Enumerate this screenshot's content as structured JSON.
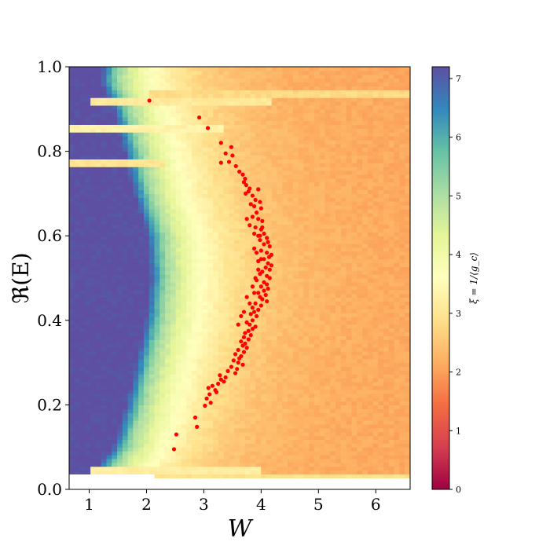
{
  "chart_data": {
    "type": "heatmap",
    "title": "",
    "xlabel": "W",
    "ylabel": "ℜ(E)",
    "xlim": [
      0.65,
      6.6
    ],
    "ylim": [
      0.0,
      1.0
    ],
    "x_ticks": [
      1,
      2,
      3,
      4,
      5,
      6
    ],
    "x_tick_labels": [
      "1",
      "2",
      "3",
      "4",
      "5",
      "6"
    ],
    "y_ticks": [
      0.0,
      0.2,
      0.4,
      0.6,
      0.8,
      1.0
    ],
    "y_tick_labels": [
      "0.0",
      "0.2",
      "0.4",
      "0.6",
      "0.8",
      "1.0"
    ],
    "colormap": "Spectral",
    "colorbar": {
      "label": "ξ = 1/⟨g_c⟩",
      "min": 0,
      "max": 7.2,
      "ticks": [
        0,
        1,
        2,
        3,
        4,
        5,
        6,
        7
      ],
      "tick_labels": [
        "0",
        "1",
        "2",
        "3",
        "4",
        "5",
        "6",
        "7"
      ],
      "colors": [
        "#9e0142",
        "#d53e4f",
        "#f46d43",
        "#fdae61",
        "#fee08b",
        "#ffffbf",
        "#e6f598",
        "#abdda4",
        "#66c2a5",
        "#3288bd",
        "#5e4fa2"
      ]
    },
    "heatmap_model": {
      "saturation_value": 7.2,
      "far_value": 2.1,
      "boundary_w_by_energy": [
        [
          0.04,
          1.2
        ],
        [
          0.1,
          1.55
        ],
        [
          0.2,
          1.78
        ],
        [
          0.3,
          1.95
        ],
        [
          0.4,
          2.12
        ],
        [
          0.5,
          2.2
        ],
        [
          0.6,
          2.15
        ],
        [
          0.7,
          1.92
        ],
        [
          0.8,
          1.75
        ],
        [
          0.9,
          1.55
        ],
        [
          0.96,
          1.35
        ],
        [
          1.0,
          1.35
        ]
      ],
      "data_floor_by_w": [
        [
          0.65,
          0.04
        ],
        [
          1.5,
          0.035
        ],
        [
          2.5,
          0.03
        ],
        [
          4.0,
          0.028
        ],
        [
          6.6,
          0.027
        ]
      ],
      "bright_bands": [
        {
          "e": 0.777,
          "w_start": 0.65,
          "w_end": 2.3,
          "value": 3.0
        },
        {
          "e": 0.85,
          "w_start": 0.65,
          "w_end": 3.3,
          "value": 3.3
        },
        {
          "e": 0.915,
          "w_start": 1.0,
          "w_end": 4.2,
          "value": 3.1
        },
        {
          "e": 0.94,
          "w_start": 2.0,
          "w_end": 6.6,
          "value": 2.8
        },
        {
          "e": 0.045,
          "w_start": 1.0,
          "w_end": 4.0,
          "value": 3.2
        },
        {
          "e": 0.03,
          "w_start": 2.0,
          "w_end": 6.6,
          "value": 2.9
        }
      ]
    },
    "series": [
      {
        "type": "scatter",
        "color": "#ff0000",
        "points": [
          [
            2.05,
            0.92
          ],
          [
            2.92,
            0.88
          ],
          [
            3.07,
            0.855
          ],
          [
            3.3,
            0.82
          ],
          [
            3.48,
            0.81
          ],
          [
            3.38,
            0.795
          ],
          [
            3.5,
            0.79
          ],
          [
            3.44,
            0.775
          ],
          [
            3.3,
            0.773
          ],
          [
            3.56,
            0.765
          ],
          [
            3.62,
            0.752
          ],
          [
            3.68,
            0.745
          ],
          [
            3.72,
            0.735
          ],
          [
            3.7,
            0.727
          ],
          [
            3.74,
            0.72
          ],
          [
            3.8,
            0.712
          ],
          [
            3.78,
            0.705
          ],
          [
            3.73,
            0.7
          ],
          [
            3.95,
            0.71
          ],
          [
            3.85,
            0.695
          ],
          [
            3.9,
            0.685
          ],
          [
            3.98,
            0.68
          ],
          [
            3.82,
            0.675
          ],
          [
            3.88,
            0.67
          ],
          [
            4.0,
            0.665
          ],
          [
            3.75,
            0.64
          ],
          [
            3.85,
            0.645
          ],
          [
            3.92,
            0.655
          ],
          [
            3.95,
            0.64
          ],
          [
            4.02,
            0.635
          ],
          [
            3.8,
            0.625
          ],
          [
            3.9,
            0.62
          ],
          [
            4.0,
            0.615
          ],
          [
            4.05,
            0.605
          ],
          [
            3.95,
            0.6
          ],
          [
            4.1,
            0.595
          ],
          [
            4.12,
            0.585
          ],
          [
            3.98,
            0.59
          ],
          [
            4.05,
            0.58
          ],
          [
            4.15,
            0.575
          ],
          [
            3.88,
            0.57
          ],
          [
            4.0,
            0.565
          ],
          [
            4.1,
            0.56
          ],
          [
            4.14,
            0.55
          ],
          [
            4.05,
            0.545
          ],
          [
            3.95,
            0.54
          ],
          [
            4.12,
            0.535
          ],
          [
            4.18,
            0.53
          ],
          [
            4.08,
            0.525
          ],
          [
            4.15,
            0.52
          ],
          [
            4.02,
            0.515
          ],
          [
            3.98,
            0.51
          ],
          [
            4.1,
            0.505
          ],
          [
            4.15,
            0.5
          ],
          [
            4.05,
            0.49
          ],
          [
            3.92,
            0.495
          ],
          [
            4.1,
            0.485
          ],
          [
            4.0,
            0.48
          ],
          [
            4.12,
            0.475
          ],
          [
            4.05,
            0.47
          ],
          [
            3.95,
            0.465
          ],
          [
            4.08,
            0.46
          ],
          [
            3.98,
            0.455
          ],
          [
            4.02,
            0.45
          ],
          [
            4.1,
            0.445
          ],
          [
            3.9,
            0.44
          ],
          [
            4.0,
            0.435
          ],
          [
            3.85,
            0.43
          ],
          [
            3.95,
            0.425
          ],
          [
            3.88,
            0.42
          ],
          [
            3.82,
            0.415
          ],
          [
            3.92,
            0.41
          ],
          [
            3.85,
            0.4
          ],
          [
            3.75,
            0.395
          ],
          [
            3.8,
            0.39
          ],
          [
            3.9,
            0.385
          ],
          [
            3.85,
            0.38
          ],
          [
            3.78,
            0.375
          ],
          [
            3.72,
            0.37
          ],
          [
            3.82,
            0.365
          ],
          [
            3.7,
            0.36
          ],
          [
            3.78,
            0.355
          ],
          [
            3.65,
            0.35
          ],
          [
            3.72,
            0.345
          ],
          [
            3.68,
            0.34
          ],
          [
            3.75,
            0.335
          ],
          [
            3.6,
            0.33
          ],
          [
            3.7,
            0.325
          ],
          [
            3.55,
            0.32
          ],
          [
            3.65,
            0.315
          ],
          [
            3.62,
            0.31
          ],
          [
            3.52,
            0.305
          ],
          [
            3.6,
            0.3
          ],
          [
            3.68,
            0.295
          ],
          [
            3.48,
            0.29
          ],
          [
            3.58,
            0.285
          ],
          [
            3.42,
            0.28
          ],
          [
            3.55,
            0.275
          ],
          [
            3.28,
            0.27
          ],
          [
            3.38,
            0.265
          ],
          [
            3.3,
            0.26
          ],
          [
            3.35,
            0.255
          ],
          [
            3.25,
            0.25
          ],
          [
            3.15,
            0.245
          ],
          [
            3.08,
            0.24
          ],
          [
            3.2,
            0.235
          ],
          [
            3.22,
            0.23
          ],
          [
            3.1,
            0.225
          ],
          [
            3.05,
            0.215
          ],
          [
            3.12,
            0.205
          ],
          [
            3.02,
            0.198
          ],
          [
            2.85,
            0.17
          ],
          [
            2.88,
            0.148
          ],
          [
            2.52,
            0.13
          ],
          [
            2.48,
            0.095
          ],
          [
            3.6,
            0.39
          ],
          [
            3.65,
            0.41
          ],
          [
            3.7,
            0.42
          ],
          [
            3.8,
            0.44
          ],
          [
            3.75,
            0.455
          ],
          [
            3.88,
            0.465
          ],
          [
            3.85,
            0.48
          ],
          [
            3.9,
            0.5
          ],
          [
            3.95,
            0.52
          ],
          [
            4.0,
            0.545
          ],
          [
            3.92,
            0.56
          ],
          [
            3.98,
            0.6
          ],
          [
            4.02,
            0.62
          ],
          [
            3.88,
            0.605
          ],
          [
            4.18,
            0.555
          ]
        ]
      }
    ]
  }
}
